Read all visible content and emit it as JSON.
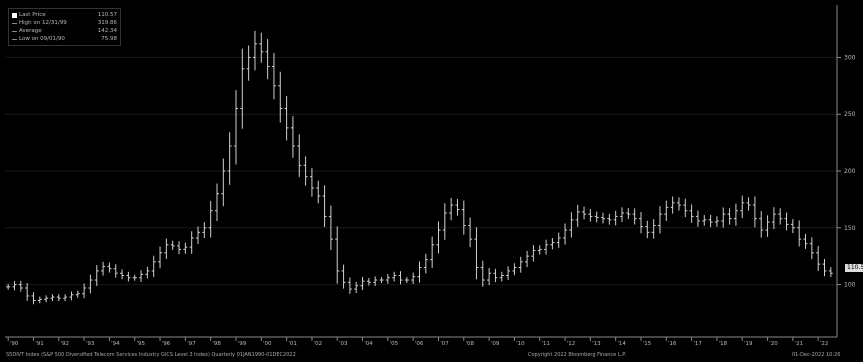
{
  "legend": {
    "last_price_label": "Last Price",
    "last_price_value": "110.57",
    "high_label": "High on 12/31/99",
    "high_value": "319.86",
    "average_label": "Average",
    "average_value": "142.34",
    "low_label": "Low on 09/01/90",
    "low_value": "75.98"
  },
  "last_price_tag": "110.57",
  "footer": {
    "left": "S5DIVT Index (S&P 500 Diversified Telecom Services Industry GICS Level 3 Index) Quarterly 01JAN1990-01DEC2022",
    "center": "Copyright 2022 Bloomberg Finance L.P.",
    "right": "01-Dec-2022 10:26"
  },
  "colors": {
    "background": "#000000",
    "bars": "#d0d0d0",
    "axis": "#888888"
  },
  "chart_data": {
    "type": "ohlc",
    "frequency": "quarterly",
    "x_tick_labels": [
      "'90",
      "'91",
      "'92",
      "'93",
      "'94",
      "'95",
      "'96",
      "'97",
      "'98",
      "'99",
      "'00",
      "'01",
      "'02",
      "'03",
      "'04",
      "'05",
      "'06",
      "'07",
      "'08",
      "'09",
      "'10",
      "'11",
      "'12",
      "'13",
      "'14",
      "'15",
      "'16",
      "'17",
      "'18",
      "'19",
      "'20",
      "'21",
      "'22",
      "'23"
    ],
    "y_ticks": [
      100,
      150,
      200,
      250,
      300
    ],
    "ylim": [
      60,
      340
    ],
    "values": [
      98,
      100,
      97,
      90,
      86,
      87,
      88,
      89,
      88,
      89,
      91,
      92,
      97,
      104,
      112,
      116,
      114,
      110,
      108,
      106,
      106,
      109,
      112,
      120,
      128,
      135,
      134,
      131,
      133,
      141,
      146,
      150,
      165,
      180,
      200,
      222,
      255,
      290,
      300,
      312,
      305,
      292,
      275,
      255,
      238,
      222,
      205,
      195,
      185,
      178,
      160,
      140,
      112,
      102,
      96,
      99,
      103,
      102,
      104,
      104,
      106,
      108,
      104,
      104,
      107,
      115,
      122,
      135,
      148,
      163,
      170,
      166,
      152,
      140,
      115,
      104,
      110,
      106,
      108,
      112,
      115,
      120,
      125,
      130,
      131,
      135,
      137,
      141,
      148,
      157,
      164,
      162,
      160,
      159,
      158,
      157,
      160,
      163,
      162,
      158,
      151,
      146,
      152,
      162,
      168,
      172,
      170,
      165,
      160,
      156,
      157,
      155,
      156,
      162,
      158,
      165,
      172,
      170,
      158,
      148,
      155,
      162,
      158,
      153,
      150,
      140,
      136,
      128,
      118,
      112,
      110
    ],
    "last_price": 110.57,
    "high": 319.86,
    "average": 142.34,
    "low": 75.98
  }
}
